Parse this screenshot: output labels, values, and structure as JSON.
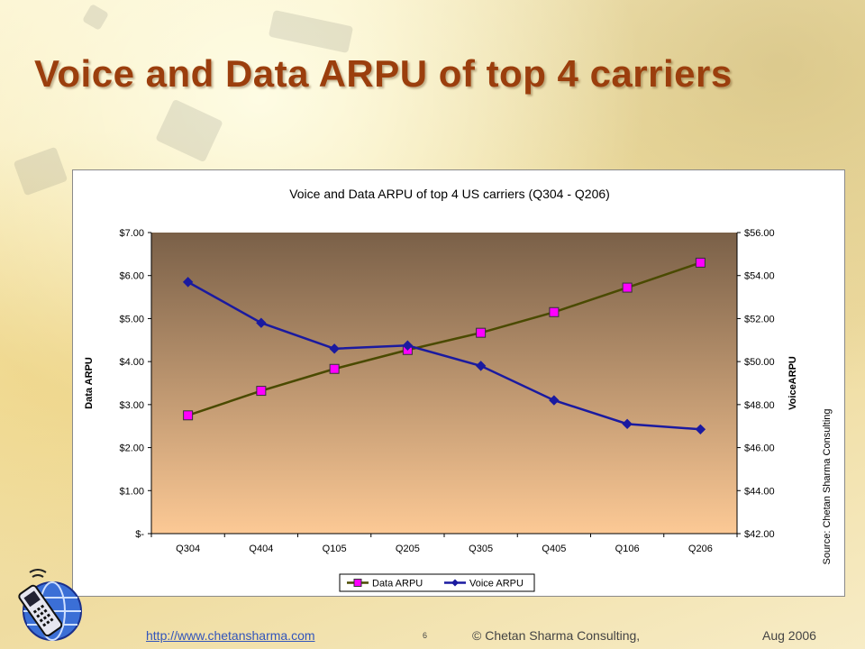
{
  "slide": {
    "title": "Voice and Data ARPU of top 4 carriers",
    "footer": {
      "link": "http://www.chetansharma.com",
      "page_number": "6",
      "copyright": "© Chetan Sharma Consulting,",
      "date": "Aug 2006"
    }
  },
  "chart_data": {
    "type": "line",
    "title": "Voice and Data ARPU of top 4 US carriers (Q304 - Q206)",
    "categories": [
      "Q304",
      "Q404",
      "Q105",
      "Q205",
      "Q305",
      "Q405",
      "Q106",
      "Q206"
    ],
    "series": [
      {
        "name": "Data ARPU",
        "axis": "left",
        "values": [
          2.75,
          3.32,
          3.83,
          4.27,
          4.67,
          5.15,
          5.72,
          6.3
        ],
        "line_color": "#4a4a00",
        "marker": "square",
        "marker_color": "#ff00ff"
      },
      {
        "name": "Voice ARPU",
        "axis": "right",
        "values": [
          53.7,
          51.8,
          50.6,
          50.75,
          49.8,
          48.2,
          47.1,
          46.85
        ],
        "line_color": "#1a1aa0",
        "marker": "diamond",
        "marker_color": "#1a1aa0"
      }
    ],
    "y_left": {
      "label": "Data ARPU",
      "min": 0,
      "max": 7,
      "ticks": [
        {
          "value": 0,
          "label": "$-"
        },
        {
          "value": 1,
          "label": "$1.00"
        },
        {
          "value": 2,
          "label": "$2.00"
        },
        {
          "value": 3,
          "label": "$3.00"
        },
        {
          "value": 4,
          "label": "$4.00"
        },
        {
          "value": 5,
          "label": "$5.00"
        },
        {
          "value": 6,
          "label": "$6.00"
        },
        {
          "value": 7,
          "label": "$7.00"
        }
      ]
    },
    "y_right": {
      "label": "VoiceARPU",
      "min": 42,
      "max": 56,
      "ticks": [
        {
          "value": 42,
          "label": "$42.00"
        },
        {
          "value": 44,
          "label": "$44.00"
        },
        {
          "value": 46,
          "label": "$46.00"
        },
        {
          "value": 48,
          "label": "$48.00"
        },
        {
          "value": 50,
          "label": "$50.00"
        },
        {
          "value": 52,
          "label": "$52.00"
        },
        {
          "value": 54,
          "label": "$54.00"
        },
        {
          "value": 56,
          "label": "$56.00"
        }
      ]
    },
    "legend_position": "bottom",
    "source_note": "Source: Chetan Sharma Consulting",
    "plot_gradient": [
      "#7a6048",
      "#fcc995"
    ]
  }
}
